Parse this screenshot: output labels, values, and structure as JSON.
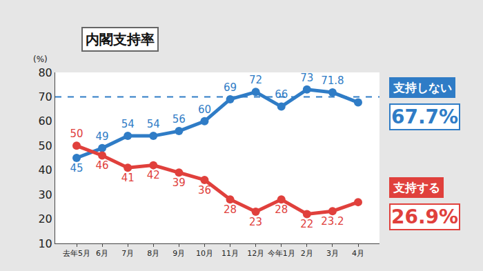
{
  "chart_data": {
    "type": "line",
    "title": "内閣支持率",
    "y_label": "(%)",
    "categories": [
      "去年5月",
      "6月",
      "7月",
      "8月",
      "9月",
      "10月",
      "11月",
      "12月",
      "今年1月",
      "2月",
      "3月",
      "4月"
    ],
    "series": [
      {
        "name": "支持しない",
        "color": "#2f7cc6",
        "values": [
          45,
          49,
          54,
          54,
          56,
          60,
          69,
          72,
          66,
          73,
          71.8,
          67.7
        ],
        "value_labels": [
          "45",
          "49",
          "54",
          "54",
          "56",
          "60",
          "69",
          "72",
          "66",
          "73",
          "71.8",
          "67.7%"
        ]
      },
      {
        "name": "支持する",
        "color": "#e0403c",
        "values": [
          50,
          46,
          41,
          42,
          39,
          36,
          28,
          23,
          28,
          22,
          23.2,
          26.9
        ],
        "value_labels": [
          "50",
          "46",
          "41",
          "42",
          "39",
          "36",
          "28",
          "23",
          "28",
          "22",
          "23.2",
          "26.9%"
        ]
      }
    ],
    "ylim": [
      10,
      80
    ],
    "yticks": [
      10,
      20,
      30,
      40,
      50,
      60,
      70,
      80
    ],
    "grid": false,
    "data_labels": true,
    "marker": "circle",
    "line_style": "solid",
    "reference_line": {
      "value": 70,
      "color": "#2f7cc6",
      "line_style": "dash"
    }
  }
}
